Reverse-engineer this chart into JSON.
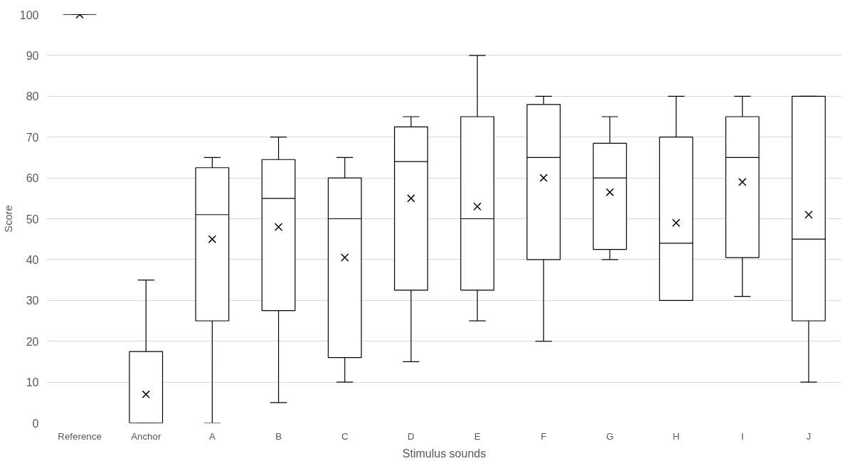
{
  "chart_data": {
    "type": "box",
    "xlabel": "Stimulus sounds",
    "ylabel": "Score",
    "categories": [
      "Reference",
      "Anchor",
      "A",
      "B",
      "C",
      "D",
      "E",
      "F",
      "G",
      "H",
      "I",
      "J"
    ],
    "boxes": [
      {
        "low": 100,
        "q1": 100,
        "median": 100,
        "q3": 100,
        "high": 100,
        "mean": 100
      },
      {
        "low": 0,
        "q1": 0,
        "median": 0,
        "q3": 17.5,
        "high": 35,
        "mean": 7
      },
      {
        "low": 0,
        "q1": 25,
        "median": 51,
        "q3": 62.5,
        "high": 65,
        "mean": 45
      },
      {
        "low": 5,
        "q1": 27.5,
        "median": 55,
        "q3": 64.5,
        "high": 70,
        "mean": 48
      },
      {
        "low": 10,
        "q1": 16,
        "median": 50,
        "q3": 60,
        "high": 65,
        "mean": 40.5
      },
      {
        "low": 15,
        "q1": 32.5,
        "median": 64,
        "q3": 72.5,
        "high": 75,
        "mean": 55
      },
      {
        "low": 25,
        "q1": 32.5,
        "median": 50,
        "q3": 75,
        "high": 90,
        "mean": 53
      },
      {
        "low": 20,
        "q1": 40,
        "median": 65,
        "q3": 78,
        "high": 80,
        "mean": 60
      },
      {
        "low": 40,
        "q1": 42.5,
        "median": 60,
        "q3": 68.5,
        "high": 75,
        "mean": 56.5
      },
      {
        "low": 30,
        "q1": 30,
        "median": 44,
        "q3": 70,
        "high": 80,
        "mean": 49
      },
      {
        "low": 31,
        "q1": 40.5,
        "median": 65,
        "q3": 75,
        "high": 80,
        "mean": 59
      },
      {
        "low": 10,
        "q1": 25,
        "median": 45,
        "q3": 80,
        "high": 80,
        "mean": 51
      }
    ],
    "color": "#000000",
    "ylim": [
      0,
      100
    ],
    "yticks": [
      0,
      10,
      20,
      30,
      40,
      50,
      60,
      70,
      80,
      90,
      100
    ],
    "grid": "y",
    "marker": "cross"
  }
}
